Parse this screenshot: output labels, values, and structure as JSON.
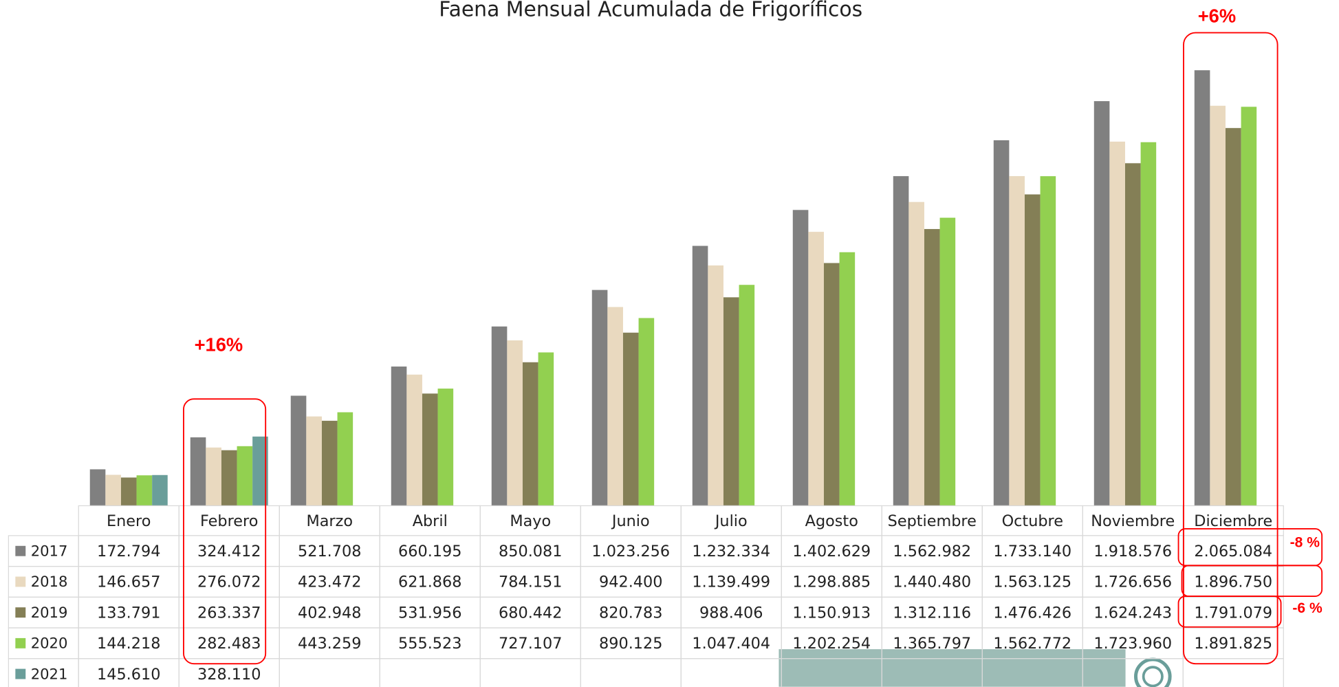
{
  "chart_data": {
    "type": "bar",
    "title": "Faena Mensual Acumulada de Frigoríficos",
    "categories": [
      "Enero",
      "Febrero",
      "Marzo",
      "Abril",
      "Mayo",
      "Junio",
      "Julio",
      "Agosto",
      "Septiembre",
      "Octubre",
      "Noviembre",
      "Diciembre"
    ],
    "series": [
      {
        "name": "2017",
        "color": "#808080",
        "values": [
          172794,
          324412,
          521708,
          660195,
          850081,
          1023256,
          1232334,
          1402629,
          1562982,
          1733140,
          1918576,
          2065084
        ],
        "value_labels": [
          "172.794",
          "324.412",
          "521.708",
          "660.195",
          "850.081",
          "1.023.256",
          "1.232.334",
          "1.402.629",
          "1.562.982",
          "1.733.140",
          "1.918.576",
          "2.065.084"
        ]
      },
      {
        "name": "2018",
        "color": "#e9d9bf",
        "values": [
          146657,
          276072,
          423472,
          621868,
          784151,
          942400,
          1139499,
          1298885,
          1440480,
          1563125,
          1726656,
          1896750
        ],
        "value_labels": [
          "146.657",
          "276.072",
          "423.472",
          "621.868",
          "784.151",
          "942.400",
          "1.139.499",
          "1.298.885",
          "1.440.480",
          "1.563.125",
          "1.726.656",
          "1.896.750"
        ]
      },
      {
        "name": "2019",
        "color": "#847f56",
        "values": [
          133791,
          263337,
          402948,
          531956,
          680442,
          820783,
          988406,
          1150913,
          1312116,
          1476426,
          1624243,
          1791079
        ],
        "value_labels": [
          "133.791",
          "263.337",
          "402.948",
          "531.956",
          "680.442",
          "820.783",
          "988.406",
          "1.150.913",
          "1.312.116",
          "1.476.426",
          "1.624.243",
          "1.791.079"
        ]
      },
      {
        "name": "2020",
        "color": "#92d050",
        "values": [
          144218,
          282483,
          443259,
          555523,
          727107,
          890125,
          1047404,
          1202254,
          1365797,
          1562772,
          1723960,
          1891825
        ],
        "value_labels": [
          "144.218",
          "282.483",
          "443.259",
          "555.523",
          "727.107",
          "890.125",
          "1.047.404",
          "1.202.254",
          "1.365.797",
          "1.562.772",
          "1.723.960",
          "1.891.825"
        ]
      },
      {
        "name": "2021",
        "color": "#6a9e9a",
        "values": [
          145610,
          328110,
          null,
          null,
          null,
          null,
          null,
          null,
          null,
          null,
          null,
          null
        ],
        "value_labels": [
          "145.610",
          "328.110",
          null,
          null,
          null,
          null,
          null,
          null,
          null,
          null,
          null,
          null
        ]
      }
    ],
    "annotations": [
      "+16%",
      "+6%",
      "-8 %",
      "-6 %"
    ]
  }
}
